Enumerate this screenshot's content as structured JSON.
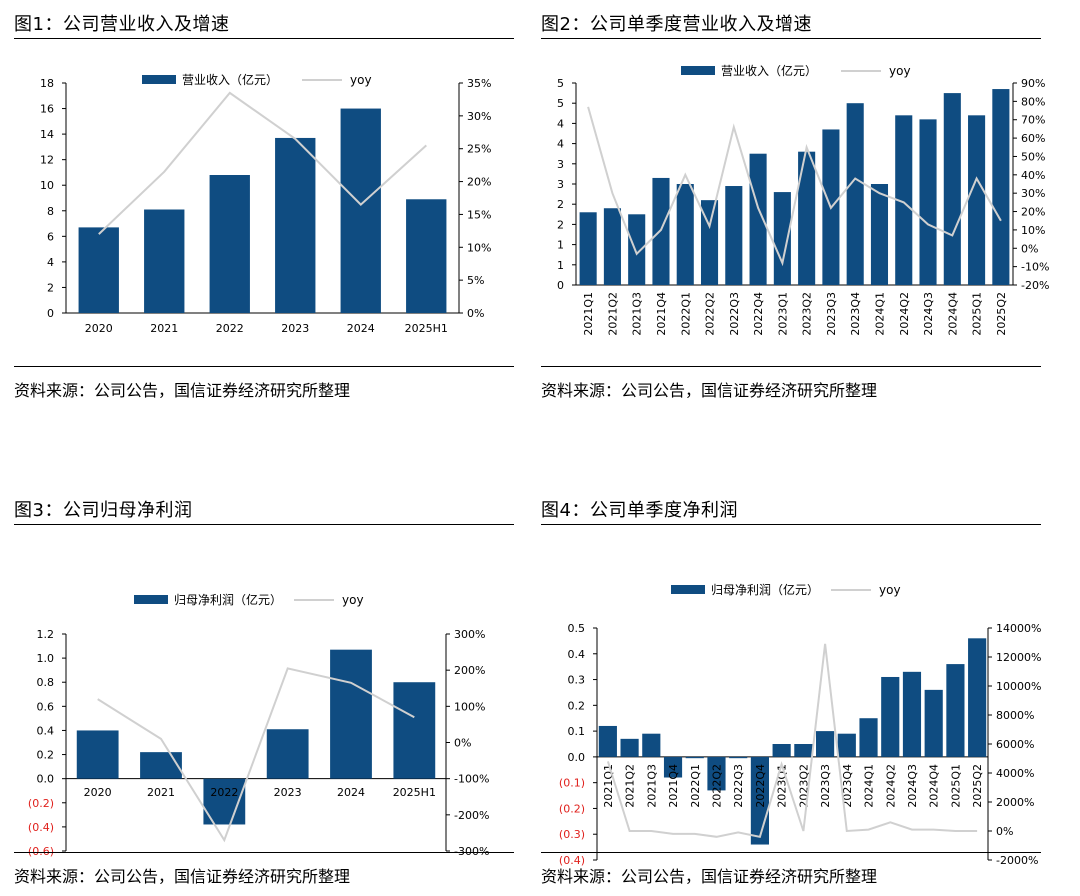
{
  "colors": {
    "bar": "#0f4c81",
    "line": "#d0d0d0",
    "red": "#e0211d"
  },
  "source": "资料来源：公司公告，国信证券经济研究所整理",
  "panels": [
    {
      "title": "图1：公司营业收入及增速",
      "chart_data": {
        "type": "bar+line",
        "categories": [
          "2020",
          "2021",
          "2022",
          "2023",
          "2024",
          "2025H1"
        ],
        "series": [
          {
            "name": "营业收入（亿元）",
            "axis": "left",
            "values": [
              6.7,
              8.1,
              10.8,
              13.7,
              16.0,
              8.9
            ]
          },
          {
            "name": "yoy",
            "axis": "right",
            "values": [
              12.0,
              21.5,
              33.5,
              26.5,
              16.5,
              25.5
            ]
          }
        ],
        "left_ticks": [
          "0",
          "2",
          "4",
          "6",
          "8",
          "10",
          "12",
          "14",
          "16",
          "18"
        ],
        "right_ticks": [
          "0%",
          "5%",
          "10%",
          "15%",
          "20%",
          "25%",
          "30%",
          "35%"
        ],
        "ylim_left": [
          0,
          18
        ],
        "ylim_right": [
          0,
          35
        ]
      }
    },
    {
      "title": "图2：公司单季度营业收入及增速",
      "chart_data": {
        "type": "bar+line",
        "categories": [
          "2021Q1",
          "2021Q2",
          "2021Q3",
          "2021Q4",
          "2022Q1",
          "2022Q2",
          "2022Q3",
          "2022Q4",
          "2023Q1",
          "2023Q2",
          "2023Q3",
          "2023Q4",
          "2024Q1",
          "2024Q2",
          "2024Q3",
          "2024Q4",
          "2025Q1",
          "2025Q2"
        ],
        "series": [
          {
            "name": "营业收入（亿元）",
            "axis": "left",
            "values": [
              1.8,
              1.9,
              1.75,
              2.65,
              2.5,
              2.1,
              2.45,
              3.25,
              2.3,
              3.3,
              3.85,
              4.5,
              2.5,
              4.2,
              4.1,
              4.75,
              4.2,
              4.85
            ]
          },
          {
            "name": "yoy",
            "axis": "right",
            "values": [
              77,
              30,
              -3,
              10,
              40,
              12,
              66,
              22,
              -8,
              55,
              22,
              38,
              30,
              25,
              13,
              7,
              38,
              15
            ]
          }
        ],
        "left_ticks": [
          "0",
          "1",
          "1",
          "2",
          "2",
          "3",
          "3",
          "4",
          "4",
          "5",
          "5"
        ],
        "right_ticks": [
          "-20%",
          "-10%",
          "0%",
          "10%",
          "20%",
          "30%",
          "40%",
          "50%",
          "60%",
          "70%",
          "80%",
          "90%"
        ],
        "ylim_left": [
          0,
          5
        ],
        "ylim_right": [
          -20,
          90
        ]
      }
    },
    {
      "title": "图3：公司归母净利润",
      "chart_data": {
        "type": "bar+line",
        "categories": [
          "2020",
          "2021",
          "2022",
          "2023",
          "2024",
          "2025H1"
        ],
        "series": [
          {
            "name": "归母净利润（亿元）",
            "axis": "left",
            "values": [
              0.4,
              0.22,
              -0.38,
              0.41,
              1.07,
              0.8
            ]
          },
          {
            "name": "yoy",
            "axis": "right",
            "values": [
              120,
              10,
              -270,
              205,
              165,
              70
            ]
          }
        ],
        "left_ticks": [
          "(0.6)",
          "(0.4)",
          "(0.2)",
          "0.0",
          "0.2",
          "0.4",
          "0.6",
          "0.8",
          "1.0",
          "1.2"
        ],
        "right_ticks": [
          "-300%",
          "-200%",
          "-100%",
          "0%",
          "100%",
          "200%",
          "300%"
        ],
        "ylim_left": [
          -0.6,
          1.2
        ],
        "ylim_right": [
          -300,
          300
        ]
      }
    },
    {
      "title": "图4：公司单季度净利润",
      "chart_data": {
        "type": "bar+line",
        "categories": [
          "2021Q1",
          "2021Q2",
          "2021Q3",
          "2021Q4",
          "2022Q1",
          "2022Q2",
          "2022Q3",
          "2022Q4",
          "2023Q1",
          "2023Q2",
          "2023Q3",
          "2023Q4",
          "2024Q1",
          "2024Q2",
          "2024Q3",
          "2024Q4",
          "2025Q1",
          "2025Q2"
        ],
        "series": [
          {
            "name": "归母净利润（亿元）",
            "axis": "left",
            "values": [
              0.12,
              0.07,
              0.09,
              -0.08,
              -0.005,
              -0.13,
              -0.005,
              -0.34,
              0.05,
              0.05,
              0.1,
              0.09,
              0.15,
              0.31,
              0.33,
              0.26,
              0.36,
              0.46
            ]
          },
          {
            "name": "yoy",
            "axis": "right",
            "values": [
              4800,
              0,
              0,
              -200,
              -200,
              -400,
              -100,
              -400,
              4600,
              0,
              12900,
              0,
              100,
              600,
              100,
              100,
              0,
              0
            ]
          }
        ],
        "left_ticks": [
          "(0.4)",
          "(0.3)",
          "(0.2)",
          "(0.1)",
          "0.0",
          "0.1",
          "0.2",
          "0.3",
          "0.4",
          "0.5"
        ],
        "right_ticks": [
          "-2000%",
          "0%",
          "2000%",
          "4000%",
          "6000%",
          "8000%",
          "10000%",
          "12000%",
          "14000%"
        ],
        "ylim_left": [
          -0.4,
          0.5
        ],
        "ylim_right": [
          -2000,
          14000
        ]
      }
    }
  ]
}
